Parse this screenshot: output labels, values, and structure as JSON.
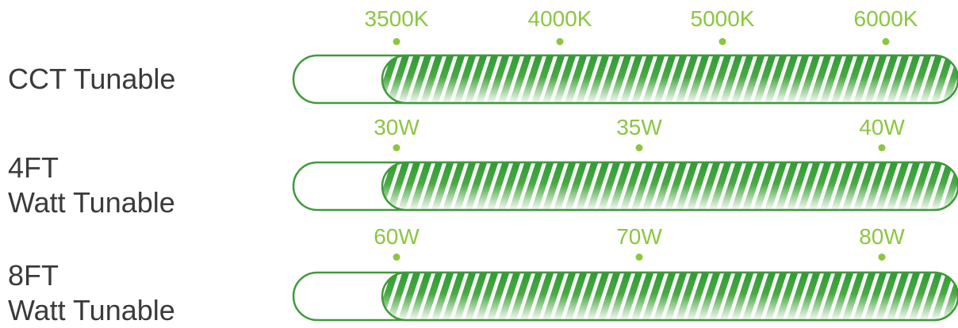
{
  "colors": {
    "label_text": "#3a3a3a",
    "tick_green": "#8cc63f",
    "bar_outline": "#3f9a3a",
    "fill_dark": "#2e9a34",
    "fill_light": "#ffffff"
  },
  "rows": [
    {
      "label_lines": [
        "CCT Tunable"
      ],
      "ticks": [
        "3500K",
        "4000K",
        "5000K",
        "6000K"
      ]
    },
    {
      "label_lines": [
        "4FT",
        "Watt Tunable"
      ],
      "ticks": [
        "30W",
        "35W",
        "40W"
      ]
    },
    {
      "label_lines": [
        "8FT",
        "Watt Tunable"
      ],
      "ticks": [
        "60W",
        "70W",
        "80W"
      ]
    }
  ]
}
